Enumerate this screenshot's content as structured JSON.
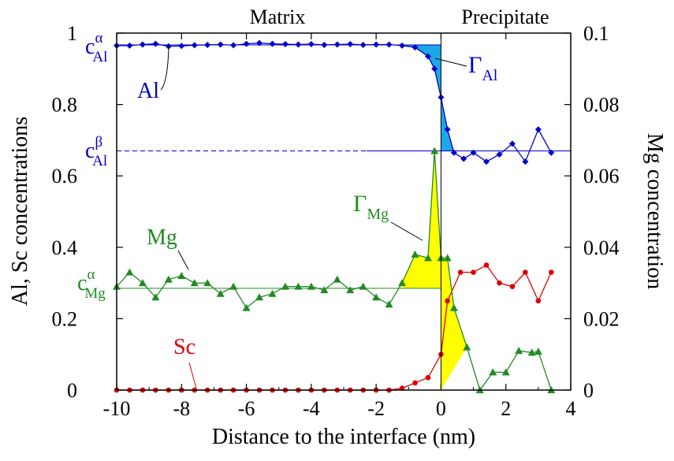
{
  "chart_data": {
    "type": "line",
    "regions": {
      "left": "Matrix",
      "right": "Precipitate"
    },
    "xlabel": "Distance to the interface (nm)",
    "ylabel_left": "Al, Sc concentrations",
    "ylabel_right": "Mg concentration",
    "xlim": [
      -10,
      4
    ],
    "ylim_left": [
      0,
      1
    ],
    "ylim_right": [
      0,
      0.1
    ],
    "x_ticks": [
      -10,
      -8,
      -6,
      -4,
      -2,
      0,
      2,
      4
    ],
    "x_tick_labels": [
      "-10",
      "-8",
      "-6",
      "-4",
      "-2",
      "0",
      "2",
      "4"
    ],
    "y_left_ticks": [
      0,
      0.2,
      0.4,
      0.6,
      0.8,
      1
    ],
    "y_left_tick_labels": [
      "0",
      "0.2",
      "0.4",
      "0.6",
      "0.8",
      "1"
    ],
    "y_right_ticks": [
      0,
      0.02,
      0.04,
      0.06,
      0.08,
      0.1
    ],
    "y_right_tick_labels": [
      "0",
      "0.02",
      "0.04",
      "0.06",
      "0.08",
      "0.1"
    ],
    "grid": false,
    "series": [
      {
        "name": "Al",
        "axis": "left",
        "color": "#0000cc",
        "marker": "diamond",
        "x": [
          -10,
          -9.6,
          -9.2,
          -8.8,
          -8.4,
          -8.0,
          -7.6,
          -7.2,
          -6.8,
          -6.4,
          -6.0,
          -5.6,
          -5.2,
          -4.8,
          -4.4,
          -4.0,
          -3.6,
          -3.2,
          -2.8,
          -2.4,
          -2.0,
          -1.6,
          -1.2,
          -0.8,
          -0.4,
          -0.2,
          0.0,
          0.2,
          0.4,
          0.7,
          1.0,
          1.4,
          1.8,
          2.2,
          2.6,
          3.0,
          3.4
        ],
        "y": [
          0.965,
          0.965,
          0.968,
          0.97,
          0.963,
          0.964,
          0.966,
          0.967,
          0.968,
          0.966,
          0.97,
          0.972,
          0.97,
          0.969,
          0.968,
          0.969,
          0.967,
          0.968,
          0.969,
          0.967,
          0.968,
          0.968,
          0.965,
          0.96,
          0.935,
          0.9,
          0.82,
          0.73,
          0.665,
          0.648,
          0.665,
          0.64,
          0.66,
          0.69,
          0.64,
          0.73,
          0.665
        ]
      },
      {
        "name": "Mg",
        "axis": "right",
        "color": "#228b22",
        "marker": "triangle",
        "x": [
          -10,
          -9.6,
          -9.2,
          -8.8,
          -8.4,
          -8.0,
          -7.6,
          -7.2,
          -6.8,
          -6.4,
          -6.0,
          -5.6,
          -5.2,
          -4.8,
          -4.4,
          -4.0,
          -3.6,
          -3.2,
          -2.8,
          -2.4,
          -2.0,
          -1.6,
          -1.2,
          -0.8,
          -0.4,
          -0.2,
          0.0,
          0.2,
          0.4,
          0.8,
          1.2,
          1.6,
          2.0,
          2.4,
          2.8,
          3.0,
          3.4
        ],
        "y": [
          0.029,
          0.033,
          0.03,
          0.026,
          0.031,
          0.032,
          0.03,
          0.03,
          0.027,
          0.029,
          0.023,
          0.026,
          0.027,
          0.029,
          0.029,
          0.029,
          0.028,
          0.031,
          0.028,
          0.029,
          0.026,
          0.024,
          0.03,
          0.038,
          0.037,
          0.067,
          0.037,
          0.037,
          0.023,
          0.012,
          0.0,
          0.005,
          0.005,
          0.011,
          0.0105,
          0.0108,
          0.0
        ]
      },
      {
        "name": "Sc",
        "axis": "left",
        "color": "#dd0000",
        "marker": "circle",
        "x": [
          -10,
          -9.6,
          -9.2,
          -8.8,
          -8.4,
          -8.0,
          -7.6,
          -7.2,
          -6.8,
          -6.4,
          -6.0,
          -5.6,
          -5.2,
          -4.8,
          -4.4,
          -4.0,
          -3.6,
          -3.2,
          -2.8,
          -2.4,
          -2.0,
          -1.6,
          -1.2,
          -0.8,
          -0.4,
          0.0,
          0.2,
          0.6,
          1.0,
          1.4,
          1.8,
          2.2,
          2.6,
          3.0,
          3.4
        ],
        "y": [
          0,
          0,
          0,
          0,
          0,
          0,
          0,
          0,
          0,
          0,
          0,
          0,
          0,
          0,
          0,
          0,
          0,
          0,
          0,
          0,
          0,
          0,
          0.005,
          0.02,
          0.035,
          0.1,
          0.25,
          0.33,
          0.33,
          0.35,
          0.3,
          0.29,
          0.33,
          0.25,
          0.33
        ]
      }
    ],
    "reference_lines": {
      "c_Al_alpha": 0.967,
      "c_Al_beta": 0.67,
      "c_Mg_alpha": 0.0285
    },
    "annotations": [
      {
        "text": "Al",
        "color": "#0000cc"
      },
      {
        "text": "Mg",
        "color": "#228b22"
      },
      {
        "text": "Sc",
        "color": "#dd0000"
      },
      {
        "text": "Γ",
        "sub": "Al",
        "color": "#0000cc"
      },
      {
        "text": "Γ",
        "sub": "Mg",
        "color": "#228b22"
      },
      {
        "text": "c",
        "sup": "α",
        "sub": "Al",
        "color": "#0000cc"
      },
      {
        "text": "c",
        "sup": "β",
        "sub": "Al",
        "color": "#0000cc"
      },
      {
        "text": "c",
        "sup": "α",
        "sub": "Mg",
        "color": "#228b22"
      }
    ]
  }
}
